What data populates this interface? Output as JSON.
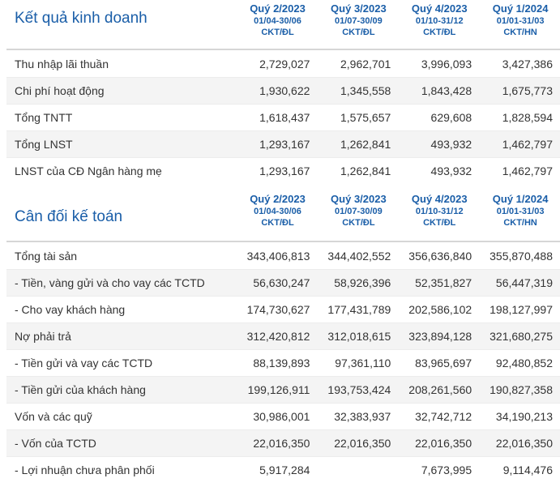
{
  "business": {
    "title": "Kết quả kinh doanh",
    "columns": [
      {
        "quarter": "Quý 2/2023",
        "range": "01/04-30/06",
        "unit": "CKT/ĐL"
      },
      {
        "quarter": "Quý 3/2023",
        "range": "01/07-30/09",
        "unit": "CKT/ĐL"
      },
      {
        "quarter": "Quý 4/2023",
        "range": "01/10-31/12",
        "unit": "CKT/ĐL"
      },
      {
        "quarter": "Quý 1/2024",
        "range": "01/01-31/03",
        "unit": "CKT/HN"
      }
    ],
    "rows": [
      {
        "label": "Thu nhập lãi thuần",
        "values": [
          "2,729,027",
          "2,962,701",
          "3,996,093",
          "3,427,386"
        ]
      },
      {
        "label": "Chi phí hoạt động",
        "values": [
          "1,930,622",
          "1,345,558",
          "1,843,428",
          "1,675,773"
        ]
      },
      {
        "label": "Tổng TNTT",
        "values": [
          "1,618,437",
          "1,575,657",
          "629,608",
          "1,828,594"
        ]
      },
      {
        "label": "Tổng LNST",
        "values": [
          "1,293,167",
          "1,262,841",
          "493,932",
          "1,462,797"
        ]
      },
      {
        "label": "LNST của CĐ Ngân hàng mẹ",
        "values": [
          "1,293,167",
          "1,262,841",
          "493,932",
          "1,462,797"
        ]
      }
    ]
  },
  "balance": {
    "title": "Cân đối kế toán",
    "columns": [
      {
        "quarter": "Quý 2/2023",
        "range": "01/04-30/06",
        "unit": "CKT/ĐL"
      },
      {
        "quarter": "Quý 3/2023",
        "range": "01/07-30/09",
        "unit": "CKT/ĐL"
      },
      {
        "quarter": "Quý 4/2023",
        "range": "01/10-31/12",
        "unit": "CKT/ĐL"
      },
      {
        "quarter": "Quý 1/2024",
        "range": "01/01-31/03",
        "unit": "CKT/HN"
      }
    ],
    "rows": [
      {
        "label": "Tổng tài sản",
        "values": [
          "343,406,813",
          "344,402,552",
          "356,636,840",
          "355,870,488"
        ]
      },
      {
        "label": "- Tiền, vàng gửi và cho vay các TCTD",
        "values": [
          "56,630,247",
          "58,926,396",
          "52,351,827",
          "56,447,319"
        ]
      },
      {
        "label": "- Cho vay khách hàng",
        "values": [
          "174,730,627",
          "177,431,789",
          "202,586,102",
          "198,127,997"
        ]
      },
      {
        "label": "Nợ phải trả",
        "values": [
          "312,420,812",
          "312,018,615",
          "323,894,128",
          "321,680,275"
        ]
      },
      {
        "label": "- Tiền gửi và vay các TCTD",
        "values": [
          "88,139,893",
          "97,361,110",
          "83,965,697",
          "92,480,852"
        ]
      },
      {
        "label": "- Tiền gửi của khách hàng",
        "values": [
          "199,126,911",
          "193,753,424",
          "208,261,560",
          "190,827,358"
        ]
      },
      {
        "label": "Vốn và các quỹ",
        "values": [
          "30,986,001",
          "32,383,937",
          "32,742,712",
          "34,190,213"
        ]
      },
      {
        "label": "- Vốn của TCTD",
        "values": [
          "22,016,350",
          "22,016,350",
          "22,016,350",
          "22,016,350"
        ]
      },
      {
        "label": "- Lợi nhuận chưa phân phối",
        "values": [
          "5,917,284",
          "",
          "7,673,995",
          "9,114,476"
        ]
      }
    ]
  }
}
